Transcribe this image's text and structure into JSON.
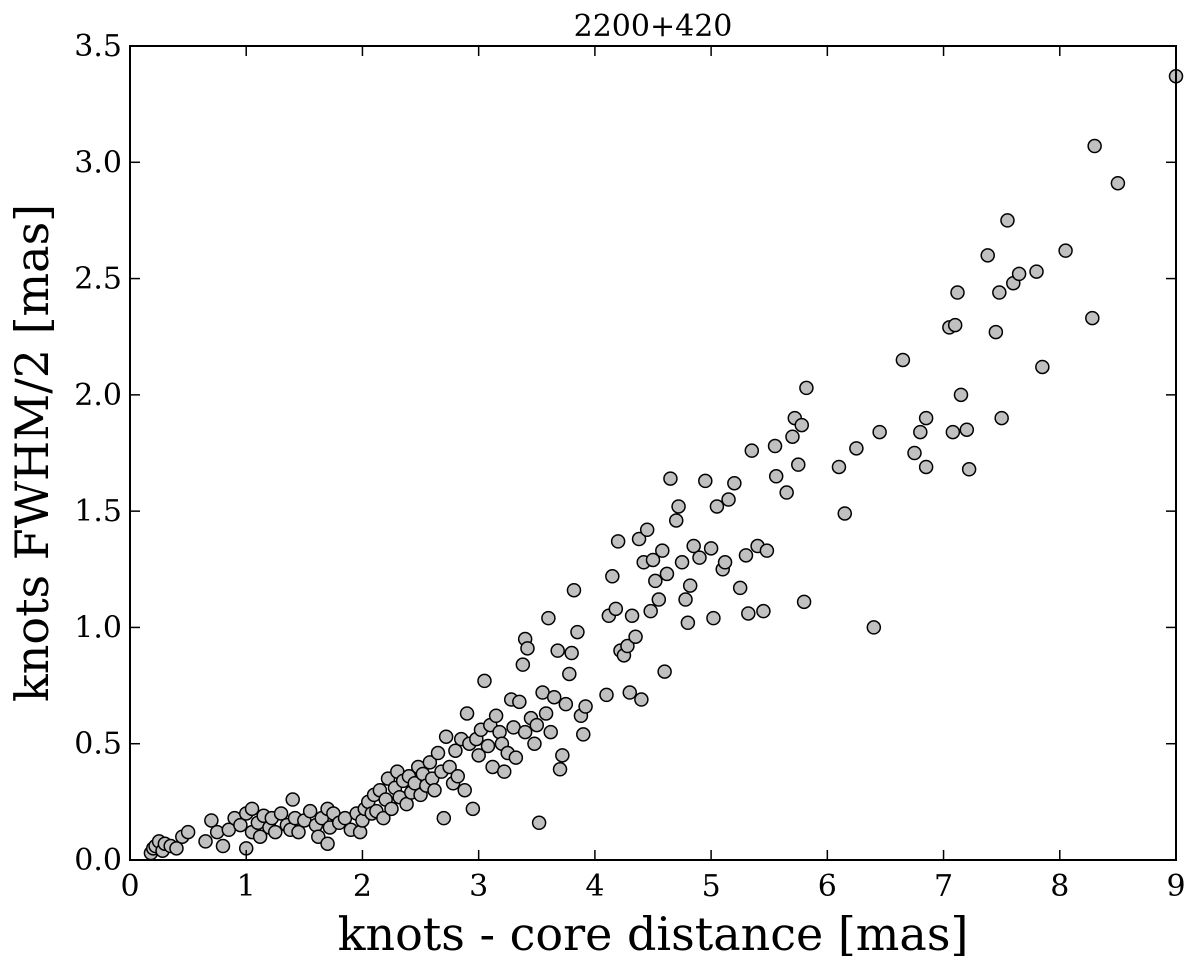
{
  "chart_data": {
    "type": "scatter",
    "title": "2200+420",
    "xlabel": "knots - core distance [mas]",
    "ylabel": "knots FWHM/2 [mas]",
    "xlim": [
      0,
      9
    ],
    "ylim": [
      0.0,
      3.5
    ],
    "xticks": [
      0,
      1,
      2,
      3,
      4,
      5,
      6,
      7,
      8,
      9
    ],
    "xtick_labels": [
      "0",
      "1",
      "2",
      "3",
      "4",
      "5",
      "6",
      "7",
      "8",
      "9"
    ],
    "yticks": [
      0.0,
      0.5,
      1.0,
      1.5,
      2.0,
      2.5,
      3.0,
      3.5
    ],
    "ytick_labels": [
      "0.0",
      "0.5",
      "1.0",
      "1.5",
      "2.0",
      "2.5",
      "3.0",
      "3.5"
    ],
    "grid": false,
    "marker_color": "#c0c0c0",
    "marker_edge_color": "#000000",
    "points": [
      [
        0.18,
        0.03
      ],
      [
        0.2,
        0.05
      ],
      [
        0.22,
        0.06
      ],
      [
        0.25,
        0.08
      ],
      [
        0.28,
        0.04
      ],
      [
        0.3,
        0.07
      ],
      [
        0.35,
        0.06
      ],
      [
        0.4,
        0.05
      ],
      [
        0.45,
        0.1
      ],
      [
        0.5,
        0.12
      ],
      [
        0.65,
        0.08
      ],
      [
        0.7,
        0.17
      ],
      [
        0.75,
        0.12
      ],
      [
        0.8,
        0.06
      ],
      [
        0.85,
        0.13
      ],
      [
        0.9,
        0.18
      ],
      [
        0.95,
        0.15
      ],
      [
        1.0,
        0.2
      ],
      [
        1.0,
        0.05
      ],
      [
        1.05,
        0.22
      ],
      [
        1.05,
        0.12
      ],
      [
        1.1,
        0.16
      ],
      [
        1.12,
        0.1
      ],
      [
        1.15,
        0.19
      ],
      [
        1.2,
        0.14
      ],
      [
        1.22,
        0.18
      ],
      [
        1.25,
        0.12
      ],
      [
        1.3,
        0.2
      ],
      [
        1.35,
        0.15
      ],
      [
        1.38,
        0.13
      ],
      [
        1.4,
        0.26
      ],
      [
        1.42,
        0.18
      ],
      [
        1.45,
        0.12
      ],
      [
        1.5,
        0.17
      ],
      [
        1.55,
        0.21
      ],
      [
        1.6,
        0.15
      ],
      [
        1.62,
        0.1
      ],
      [
        1.65,
        0.18
      ],
      [
        1.7,
        0.22
      ],
      [
        1.7,
        0.07
      ],
      [
        1.72,
        0.14
      ],
      [
        1.75,
        0.2
      ],
      [
        1.8,
        0.16
      ],
      [
        1.85,
        0.18
      ],
      [
        1.9,
        0.13
      ],
      [
        1.95,
        0.2
      ],
      [
        1.98,
        0.12
      ],
      [
        2.0,
        0.17
      ],
      [
        2.02,
        0.22
      ],
      [
        2.05,
        0.25
      ],
      [
        2.08,
        0.2
      ],
      [
        2.1,
        0.28
      ],
      [
        2.12,
        0.21
      ],
      [
        2.15,
        0.3
      ],
      [
        2.18,
        0.18
      ],
      [
        2.2,
        0.26
      ],
      [
        2.22,
        0.35
      ],
      [
        2.25,
        0.22
      ],
      [
        2.28,
        0.31
      ],
      [
        2.3,
        0.38
      ],
      [
        2.32,
        0.27
      ],
      [
        2.35,
        0.34
      ],
      [
        2.38,
        0.24
      ],
      [
        2.4,
        0.36
      ],
      [
        2.42,
        0.29
      ],
      [
        2.45,
        0.33
      ],
      [
        2.48,
        0.4
      ],
      [
        2.5,
        0.28
      ],
      [
        2.52,
        0.37
      ],
      [
        2.55,
        0.32
      ],
      [
        2.58,
        0.42
      ],
      [
        2.6,
        0.35
      ],
      [
        2.62,
        0.3
      ],
      [
        2.65,
        0.46
      ],
      [
        2.68,
        0.38
      ],
      [
        2.7,
        0.18
      ],
      [
        2.72,
        0.53
      ],
      [
        2.75,
        0.4
      ],
      [
        2.78,
        0.33
      ],
      [
        2.8,
        0.47
      ],
      [
        2.82,
        0.36
      ],
      [
        2.85,
        0.52
      ],
      [
        2.88,
        0.3
      ],
      [
        2.9,
        0.63
      ],
      [
        2.92,
        0.5
      ],
      [
        2.95,
        0.22
      ],
      [
        2.98,
        0.52
      ],
      [
        3.0,
        0.45
      ],
      [
        3.02,
        0.56
      ],
      [
        3.05,
        0.77
      ],
      [
        3.08,
        0.49
      ],
      [
        3.1,
        0.58
      ],
      [
        3.12,
        0.4
      ],
      [
        3.15,
        0.62
      ],
      [
        3.18,
        0.55
      ],
      [
        3.2,
        0.5
      ],
      [
        3.22,
        0.38
      ],
      [
        3.25,
        0.46
      ],
      [
        3.28,
        0.69
      ],
      [
        3.3,
        0.57
      ],
      [
        3.32,
        0.44
      ],
      [
        3.35,
        0.68
      ],
      [
        3.38,
        0.84
      ],
      [
        3.4,
        0.95
      ],
      [
        3.4,
        0.55
      ],
      [
        3.42,
        0.91
      ],
      [
        3.45,
        0.61
      ],
      [
        3.48,
        0.5
      ],
      [
        3.5,
        0.58
      ],
      [
        3.52,
        0.16
      ],
      [
        3.55,
        0.72
      ],
      [
        3.58,
        0.63
      ],
      [
        3.6,
        1.04
      ],
      [
        3.62,
        0.55
      ],
      [
        3.65,
        0.7
      ],
      [
        3.68,
        0.9
      ],
      [
        3.7,
        0.39
      ],
      [
        3.72,
        0.45
      ],
      [
        3.75,
        0.67
      ],
      [
        3.78,
        0.8
      ],
      [
        3.8,
        0.89
      ],
      [
        3.82,
        1.16
      ],
      [
        3.85,
        0.98
      ],
      [
        3.88,
        0.62
      ],
      [
        3.9,
        0.54
      ],
      [
        3.92,
        0.66
      ],
      [
        4.1,
        0.71
      ],
      [
        4.12,
        1.05
      ],
      [
        4.15,
        1.22
      ],
      [
        4.18,
        1.08
      ],
      [
        4.2,
        1.37
      ],
      [
        4.22,
        0.9
      ],
      [
        4.25,
        0.88
      ],
      [
        4.28,
        0.92
      ],
      [
        4.3,
        0.72
      ],
      [
        4.32,
        1.05
      ],
      [
        4.35,
        0.96
      ],
      [
        4.38,
        1.38
      ],
      [
        4.4,
        0.69
      ],
      [
        4.42,
        1.28
      ],
      [
        4.45,
        1.42
      ],
      [
        4.48,
        1.07
      ],
      [
        4.5,
        1.29
      ],
      [
        4.52,
        1.2
      ],
      [
        4.55,
        1.12
      ],
      [
        4.58,
        1.33
      ],
      [
        4.6,
        0.81
      ],
      [
        4.62,
        1.23
      ],
      [
        4.65,
        1.64
      ],
      [
        4.7,
        1.46
      ],
      [
        4.72,
        1.52
      ],
      [
        4.75,
        1.28
      ],
      [
        4.78,
        1.12
      ],
      [
        4.8,
        1.02
      ],
      [
        4.82,
        1.18
      ],
      [
        4.85,
        1.35
      ],
      [
        4.9,
        1.3
      ],
      [
        4.95,
        1.63
      ],
      [
        5.0,
        1.34
      ],
      [
        5.02,
        1.04
      ],
      [
        5.05,
        1.52
      ],
      [
        5.1,
        1.25
      ],
      [
        5.12,
        1.28
      ],
      [
        5.15,
        1.55
      ],
      [
        5.2,
        1.62
      ],
      [
        5.25,
        1.17
      ],
      [
        5.3,
        1.31
      ],
      [
        5.32,
        1.06
      ],
      [
        5.35,
        1.76
      ],
      [
        5.4,
        1.35
      ],
      [
        5.45,
        1.07
      ],
      [
        5.48,
        1.33
      ],
      [
        5.55,
        1.78
      ],
      [
        5.56,
        1.65
      ],
      [
        5.65,
        1.58
      ],
      [
        5.7,
        1.82
      ],
      [
        5.72,
        1.9
      ],
      [
        5.75,
        1.7
      ],
      [
        5.78,
        1.87
      ],
      [
        5.8,
        1.11
      ],
      [
        5.82,
        2.03
      ],
      [
        6.1,
        1.69
      ],
      [
        6.15,
        1.49
      ],
      [
        6.25,
        1.77
      ],
      [
        6.4,
        1.0
      ],
      [
        6.45,
        1.84
      ],
      [
        6.65,
        2.15
      ],
      [
        6.75,
        1.75
      ],
      [
        6.8,
        1.84
      ],
      [
        6.85,
        1.9
      ],
      [
        6.85,
        1.69
      ],
      [
        7.05,
        2.29
      ],
      [
        7.08,
        1.84
      ],
      [
        7.1,
        2.3
      ],
      [
        7.12,
        2.44
      ],
      [
        7.15,
        2.0
      ],
      [
        7.2,
        1.85
      ],
      [
        7.22,
        1.68
      ],
      [
        7.38,
        2.6
      ],
      [
        7.45,
        2.27
      ],
      [
        7.48,
        2.44
      ],
      [
        7.5,
        1.9
      ],
      [
        7.55,
        2.75
      ],
      [
        7.6,
        2.48
      ],
      [
        7.65,
        2.52
      ],
      [
        7.8,
        2.53
      ],
      [
        7.85,
        2.12
      ],
      [
        8.05,
        2.62
      ],
      [
        8.28,
        2.33
      ],
      [
        8.3,
        3.07
      ],
      [
        8.5,
        2.91
      ],
      [
        9.0,
        3.37
      ]
    ]
  }
}
